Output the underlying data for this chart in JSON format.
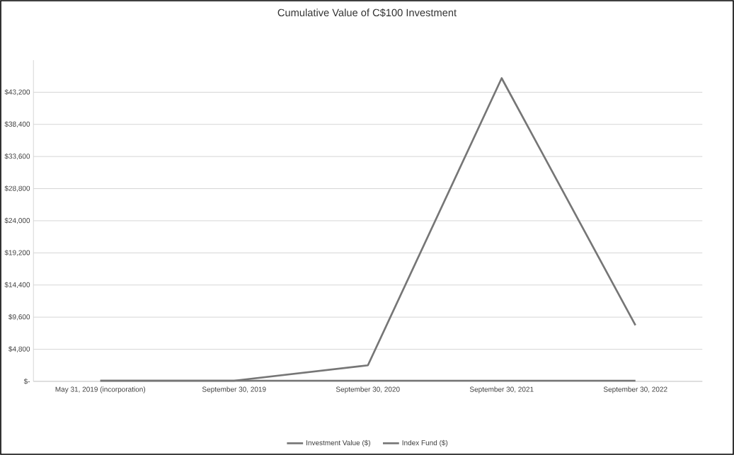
{
  "chart_data": {
    "type": "line",
    "title": "Cumulative Value of C$100 Investment",
    "categories": [
      "May 31, 2019 (incorporation)",
      "September 30, 2019",
      "September 30, 2020",
      "September 30, 2021",
      "September 30, 2022"
    ],
    "series": [
      {
        "name": "Investment Value ($)",
        "color": "#767676",
        "values": [
          100,
          100,
          2400,
          45300,
          8400
        ]
      },
      {
        "name": "Index Fund ($)",
        "color": "#767676",
        "values": [
          100,
          100,
          100,
          100,
          100
        ]
      }
    ],
    "yticks": [
      {
        "value": 0,
        "label": "$-"
      },
      {
        "value": 4800,
        "label": "$4,800"
      },
      {
        "value": 9600,
        "label": "$9,600"
      },
      {
        "value": 14400,
        "label": "$14,400"
      },
      {
        "value": 19200,
        "label": "$19,200"
      },
      {
        "value": 24000,
        "label": "$24,000"
      },
      {
        "value": 28800,
        "label": "$28,800"
      },
      {
        "value": 33600,
        "label": "$33,600"
      },
      {
        "value": 38400,
        "label": "$38,400"
      },
      {
        "value": 43200,
        "label": "$43,200"
      }
    ],
    "ylim": [
      0,
      48000
    ],
    "grid": "y",
    "legend": "bottom",
    "marker": "none",
    "line_style": "solid"
  }
}
